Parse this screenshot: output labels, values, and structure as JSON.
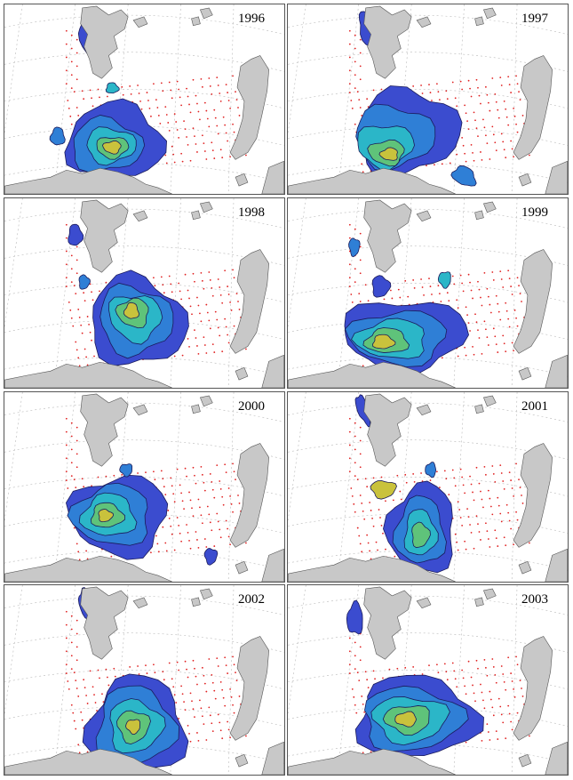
{
  "figure": {
    "panels": [
      {
        "year": "1996"
      },
      {
        "year": "1997"
      },
      {
        "year": "1998"
      },
      {
        "year": "1999"
      },
      {
        "year": "2000"
      },
      {
        "year": "2001"
      },
      {
        "year": "2002"
      },
      {
        "year": "2003"
      }
    ]
  },
  "colors": {
    "land": "#c8c8c8",
    "station_dots": "#e02020",
    "graticule": "#b8b8b8",
    "contour_scale": [
      "#2a1e8c",
      "#3b4ccf",
      "#2f7fd6",
      "#2bb6c8",
      "#5fc37a",
      "#c9c23c",
      "#f2c21c"
    ]
  }
}
